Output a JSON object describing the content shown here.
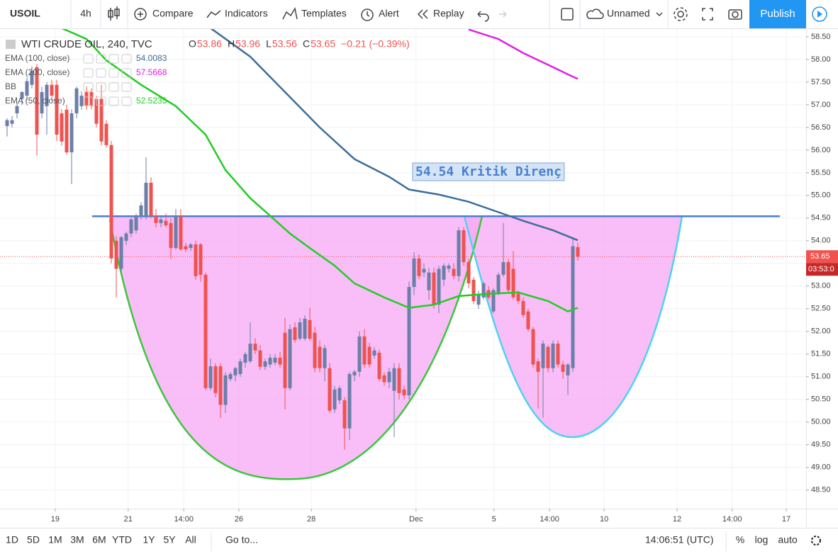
{
  "toolbar": {
    "symbol": "USOIL",
    "interval": "4h",
    "items": [
      "Compare",
      "Indicators",
      "Templates",
      "Alert",
      "Replay"
    ],
    "layout_name": "Unnamed",
    "publish": "Publish"
  },
  "bottom_bar": {
    "ranges": [
      "1D",
      "5D",
      "1M",
      "3M",
      "6M",
      "YTD",
      "1Y",
      "5Y",
      "All"
    ],
    "goto": "Go to...",
    "clock": "14:06:51 (UTC)",
    "options": [
      "%",
      "log",
      "auto"
    ]
  },
  "chart_data": {
    "type": "candlestick",
    "title": "WTI CRUDE OIL, 240, TVC",
    "ohlc_labels": [
      "O",
      "H",
      "L",
      "C"
    ],
    "change": "−0.21 (−0.39%)",
    "up_color": "#6b7fa8",
    "down_color": "#ef5350",
    "candles": [
      [
        56.53,
        56.7,
        56.3,
        56.66
      ],
      [
        56.58,
        56.75,
        56.5,
        56.66
      ],
      [
        56.81,
        57.05,
        56.7,
        56.97
      ],
      [
        57.13,
        57.3,
        57.0,
        57.28
      ],
      [
        57.2,
        57.6,
        57.1,
        57.52
      ],
      [
        57.44,
        57.85,
        57.36,
        57.75
      ],
      [
        57.83,
        57.9,
        55.88,
        56.34
      ],
      [
        56.81,
        57.4,
        56.7,
        57.28
      ],
      [
        56.97,
        57.5,
        56.34,
        57.44
      ],
      [
        57.44,
        57.55,
        57.1,
        57.2
      ],
      [
        57.44,
        57.55,
        56.2,
        56.34
      ],
      [
        56.81,
        56.9,
        56.1,
        56.19
      ],
      [
        56.89,
        57.0,
        55.9,
        55.95
      ],
      [
        55.95,
        56.9,
        55.25,
        56.81
      ],
      [
        56.81,
        57.4,
        56.7,
        57.36
      ],
      [
        56.97,
        57.3,
        56.89,
        57.2
      ],
      [
        57.28,
        57.4,
        56.89,
        56.97
      ],
      [
        57.28,
        57.36,
        56.9,
        56.97
      ],
      [
        57.13,
        57.2,
        56.5,
        56.58
      ],
      [
        57.13,
        57.44,
        56.1,
        56.19
      ],
      [
        56.58,
        56.66,
        56.05,
        56.11
      ],
      [
        56.11,
        56.2,
        53.5,
        53.61
      ],
      [
        54.0,
        54.1,
        52.75,
        53.38
      ],
      [
        53.38,
        54.1,
        53.3,
        54.08
      ],
      [
        54.0,
        54.2,
        53.9,
        54.16
      ],
      [
        54.16,
        54.5,
        54.08,
        54.47
      ],
      [
        54.23,
        54.6,
        54.16,
        54.55
      ],
      [
        54.55,
        54.85,
        54.47,
        54.78
      ],
      [
        54.55,
        55.84,
        54.47,
        55.28
      ],
      [
        55.28,
        55.4,
        54.5,
        54.55
      ],
      [
        54.55,
        54.7,
        54.3,
        54.39
      ],
      [
        54.39,
        54.55,
        54.3,
        54.47
      ],
      [
        54.44,
        54.6,
        54.3,
        54.34
      ],
      [
        54.39,
        54.5,
        53.6,
        53.84
      ],
      [
        53.84,
        54.7,
        53.8,
        54.55
      ],
      [
        54.55,
        54.7,
        53.77,
        53.81
      ],
      [
        53.88,
        53.95,
        53.75,
        53.81
      ],
      [
        53.84,
        53.95,
        53.77,
        53.92
      ],
      [
        53.92,
        54.0,
        53.14,
        53.22
      ],
      [
        53.92,
        53.95,
        53.1,
        53.25
      ],
      [
        53.25,
        53.3,
        50.7,
        50.75
      ],
      [
        50.75,
        51.4,
        50.7,
        51.23
      ],
      [
        51.23,
        51.3,
        50.55,
        50.64
      ],
      [
        51.23,
        51.3,
        50.09,
        50.38
      ],
      [
        50.38,
        51.1,
        50.2,
        51.03
      ],
      [
        50.95,
        51.1,
        50.9,
        51.06
      ],
      [
        51.03,
        51.22,
        50.9,
        51.19
      ],
      [
        51.06,
        51.4,
        51.0,
        51.34
      ],
      [
        51.31,
        51.55,
        51.2,
        51.5
      ],
      [
        51.34,
        52.2,
        51.3,
        51.73
      ],
      [
        51.73,
        51.85,
        51.5,
        51.58
      ],
      [
        51.58,
        51.7,
        51.15,
        51.22
      ],
      [
        51.22,
        51.4,
        51.15,
        51.34
      ],
      [
        51.27,
        51.5,
        51.2,
        51.42
      ],
      [
        51.31,
        51.5,
        51.25,
        51.42
      ],
      [
        51.42,
        51.55,
        51.2,
        51.27
      ],
      [
        51.97,
        52.3,
        50.28,
        50.75
      ],
      [
        50.75,
        52.15,
        50.7,
        52.05
      ],
      [
        52.09,
        52.2,
        51.75,
        51.81
      ],
      [
        51.84,
        52.3,
        51.8,
        52.2
      ],
      [
        51.84,
        52.35,
        51.8,
        52.28
      ],
      [
        52.25,
        52.52,
        51.8,
        51.84
      ],
      [
        51.97,
        52.1,
        51.1,
        51.19
      ],
      [
        51.66,
        51.8,
        51.1,
        51.19
      ],
      [
        51.19,
        51.7,
        50.9,
        51.63
      ],
      [
        51.19,
        51.3,
        50.2,
        50.25
      ],
      [
        50.28,
        50.8,
        50.2,
        50.72
      ],
      [
        50.48,
        50.8,
        50.4,
        50.75
      ],
      [
        50.48,
        50.55,
        49.39,
        49.86
      ],
      [
        49.86,
        51.1,
        49.6,
        51.06
      ],
      [
        51.03,
        51.15,
        50.9,
        51.11
      ],
      [
        51.11,
        52.0,
        51.0,
        51.89
      ],
      [
        51.89,
        52.05,
        51.2,
        51.27
      ],
      [
        51.66,
        51.75,
        51.2,
        51.27
      ],
      [
        51.47,
        51.65,
        51.4,
        51.58
      ],
      [
        51.53,
        51.6,
        50.9,
        50.95
      ],
      [
        51.03,
        51.1,
        50.8,
        50.88
      ],
      [
        50.88,
        51.2,
        50.75,
        51.11
      ],
      [
        50.69,
        51.3,
        49.67,
        51.19
      ],
      [
        51.19,
        51.3,
        50.5,
        50.64
      ],
      [
        50.72,
        50.8,
        50.5,
        50.59
      ],
      [
        50.59,
        53.1,
        50.5,
        52.98
      ],
      [
        52.98,
        53.75,
        52.8,
        53.61
      ],
      [
        53.61,
        53.7,
        53.15,
        53.22
      ],
      [
        53.3,
        53.5,
        53.2,
        53.38
      ],
      [
        52.91,
        53.4,
        52.7,
        53.3
      ],
      [
        53.3,
        53.4,
        52.5,
        52.59
      ],
      [
        52.59,
        53.45,
        52.4,
        53.38
      ],
      [
        53.14,
        53.5,
        53.0,
        53.45
      ],
      [
        53.38,
        53.5,
        53.3,
        53.45
      ],
      [
        53.38,
        53.5,
        53.15,
        53.22
      ],
      [
        53.22,
        54.3,
        53.1,
        54.23
      ],
      [
        54.23,
        54.3,
        53.45,
        53.53
      ],
      [
        53.53,
        53.6,
        52.95,
        53.06
      ],
      [
        53.14,
        53.2,
        52.6,
        52.67
      ],
      [
        52.59,
        52.9,
        52.5,
        52.83
      ],
      [
        52.75,
        53.1,
        52.7,
        53.06
      ],
      [
        52.91,
        53.0,
        52.7,
        52.75
      ],
      [
        52.44,
        52.95,
        52.4,
        52.91
      ],
      [
        52.83,
        53.3,
        52.8,
        53.25
      ],
      [
        53.25,
        54.39,
        53.2,
        53.53
      ],
      [
        53.53,
        53.6,
        52.85,
        52.91
      ],
      [
        53.38,
        53.77,
        52.7,
        52.75
      ],
      [
        52.83,
        52.9,
        52.6,
        52.67
      ],
      [
        52.67,
        52.75,
        52.3,
        52.36
      ],
      [
        52.44,
        52.5,
        52.0,
        52.05
      ],
      [
        52.05,
        52.1,
        51.2,
        51.27
      ],
      [
        51.34,
        51.4,
        50.3,
        51.11
      ],
      [
        51.19,
        51.8,
        50.1,
        51.73
      ],
      [
        51.66,
        51.7,
        51.1,
        51.19
      ],
      [
        51.19,
        51.8,
        51.1,
        51.73
      ],
      [
        51.73,
        51.8,
        51.2,
        51.27
      ],
      [
        51.27,
        51.35,
        50.95,
        51.11
      ],
      [
        51.03,
        51.3,
        50.6,
        51.27
      ],
      [
        51.19,
        54.08,
        51.1,
        53.88
      ],
      [
        53.86,
        53.96,
        53.56,
        53.65
      ]
    ],
    "indicators": [
      {
        "name": "EMA (100, close)",
        "color": "#3d6e99",
        "legend_value": 54.0083,
        "x": [
          41,
          49,
          56,
          63,
          70,
          77,
          81,
          87,
          93,
          99,
          104,
          110,
          115
        ],
        "values": [
          58.69,
          58.06,
          57.28,
          56.5,
          55.8,
          55.41,
          55.13,
          55.02,
          54.86,
          54.63,
          54.44,
          54.23,
          54.01
        ]
      },
      {
        "name": "EMA (200, close)",
        "color": "#e020e0",
        "legend_value": 57.5668,
        "x": [
          93,
          99,
          104,
          110,
          113,
          115
        ],
        "values": [
          58.66,
          58.45,
          58.14,
          57.83,
          57.67,
          57.57
        ]
      },
      {
        "name": "BB",
        "color": "#2962ff"
      },
      {
        "name": "EMA (50, close)",
        "color": "#22cc22",
        "legend_value": 52.5235,
        "x": [
          11,
          16,
          20,
          27,
          34,
          40,
          44,
          49,
          53,
          57,
          61,
          66,
          70,
          76,
          81,
          86,
          91,
          97,
          103,
          109,
          113,
          115
        ],
        "values": [
          58.69,
          58.45,
          57.98,
          57.44,
          56.97,
          56.34,
          55.56,
          54.94,
          54.55,
          54.16,
          53.84,
          53.45,
          53.06,
          52.75,
          52.52,
          52.59,
          52.78,
          52.83,
          52.86,
          52.67,
          52.44,
          52.52
        ]
      }
    ],
    "resistance": {
      "value": 54.54,
      "label": "54.54 Kritik Direnç",
      "color": "#4a7fd0"
    },
    "countdown": "03:53:0",
    "xlim": [
      -1.43,
      161
    ],
    "ylim": [
      48.09,
      58.67
    ],
    "grid": true,
    "xticks": [
      {
        "value": 9.7,
        "label": "19"
      },
      {
        "value": 24.4,
        "label": "21"
      },
      {
        "value": 35.6,
        "label": "14:00"
      },
      {
        "value": 46.7,
        "label": "26"
      },
      {
        "value": 61.3,
        "label": "28"
      },
      {
        "value": 82.4,
        "label": "Dec"
      },
      {
        "value": 98.1,
        "label": "5"
      },
      {
        "value": 109.3,
        "label": "14:00"
      },
      {
        "value": 120.3,
        "label": "10"
      },
      {
        "value": 135,
        "label": "12"
      },
      {
        "value": 146.1,
        "label": "14:00"
      },
      {
        "value": 157,
        "label": "17"
      }
    ],
    "yticks": [
      {
        "value": 48.5,
        "label": "48.50"
      },
      {
        "value": 49,
        "label": "49.00"
      },
      {
        "value": 49.5,
        "label": "49.50"
      },
      {
        "value": 50,
        "label": "50.00"
      },
      {
        "value": 50.5,
        "label": "50.50"
      },
      {
        "value": 51,
        "label": "51.00"
      },
      {
        "value": 51.5,
        "label": "51.50"
      },
      {
        "value": 52,
        "label": "52.00"
      },
      {
        "value": 52.5,
        "label": "52.50"
      },
      {
        "value": 53,
        "label": "53.00"
      },
      {
        "value": 53.5,
        "label": "53.50"
      },
      {
        "value": 54,
        "label": "54.00"
      },
      {
        "value": 54.5,
        "label": "54.50"
      },
      {
        "value": 55,
        "label": "55.00"
      },
      {
        "value": 55.5,
        "label": "55.50"
      },
      {
        "value": 56,
        "label": "56.00"
      },
      {
        "value": 56.5,
        "label": "56.50"
      },
      {
        "value": 57,
        "label": "57.00"
      },
      {
        "value": 57.5,
        "label": "57.50"
      },
      {
        "value": 58,
        "label": "58.00"
      },
      {
        "value": 58.5,
        "label": "58.50"
      }
    ]
  }
}
